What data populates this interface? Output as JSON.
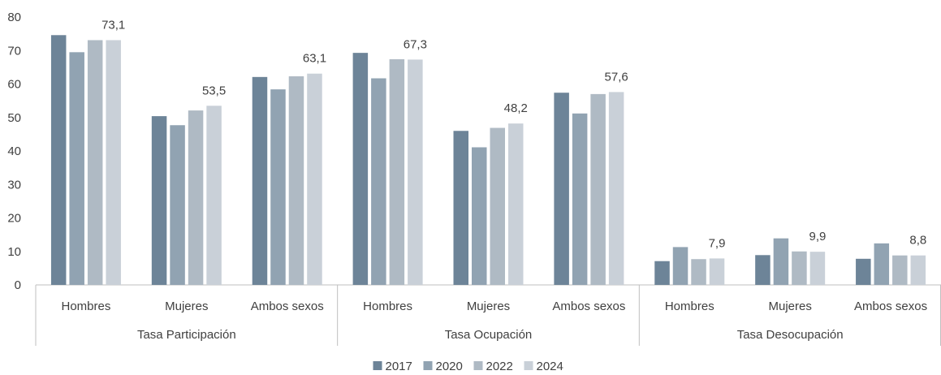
{
  "chart_data": {
    "type": "bar",
    "title": "",
    "xlabel": "",
    "ylabel": "",
    "ylim": [
      0,
      80
    ],
    "yticks": [
      "0",
      "10",
      "20",
      "30",
      "40",
      "50",
      "60",
      "70",
      "80"
    ],
    "grid": false,
    "legend_position": "bottom",
    "groups": [
      {
        "label": "Tasa Participación",
        "categories": [
          "Hombres",
          "Mujeres",
          "Ambos sexos"
        ]
      },
      {
        "label": "Tasa Ocupación",
        "categories": [
          "Hombres",
          "Mujeres",
          "Ambos sexos"
        ]
      },
      {
        "label": "Tasa Desocupación",
        "categories": [
          "Hombres",
          "Mujeres",
          "Ambos sexos"
        ]
      }
    ],
    "series": [
      {
        "name": "2017",
        "color": "#6d8498",
        "values": [
          74.6,
          50.4,
          62.1,
          69.3,
          46.0,
          57.4,
          7.1,
          8.9,
          7.8
        ]
      },
      {
        "name": "2020",
        "color": "#91a3b2",
        "values": [
          69.5,
          47.7,
          58.4,
          61.7,
          41.1,
          51.2,
          11.3,
          13.9,
          12.4
        ]
      },
      {
        "name": "2022",
        "color": "#afbac4",
        "values": [
          73.1,
          52.1,
          62.3,
          67.4,
          46.9,
          57.0,
          7.7,
          10.0,
          8.8
        ]
      },
      {
        "name": "2024",
        "color": "#c9d0d8",
        "values": [
          73.1,
          53.5,
          63.1,
          67.3,
          48.2,
          57.6,
          7.9,
          9.9,
          8.8
        ]
      }
    ],
    "data_labels": [
      {
        "series": "2024",
        "index": 0,
        "text": "73,1"
      },
      {
        "series": "2024",
        "index": 1,
        "text": "53,5"
      },
      {
        "series": "2024",
        "index": 2,
        "text": "63,1"
      },
      {
        "series": "2024",
        "index": 3,
        "text": "67,3"
      },
      {
        "series": "2024",
        "index": 4,
        "text": "48,2"
      },
      {
        "series": "2024",
        "index": 5,
        "text": "57,6"
      },
      {
        "series": "2024",
        "index": 6,
        "text": "7,9"
      },
      {
        "series": "2024",
        "index": 7,
        "text": "9,9"
      },
      {
        "series": "2024",
        "index": 8,
        "text": "8,8"
      }
    ]
  }
}
